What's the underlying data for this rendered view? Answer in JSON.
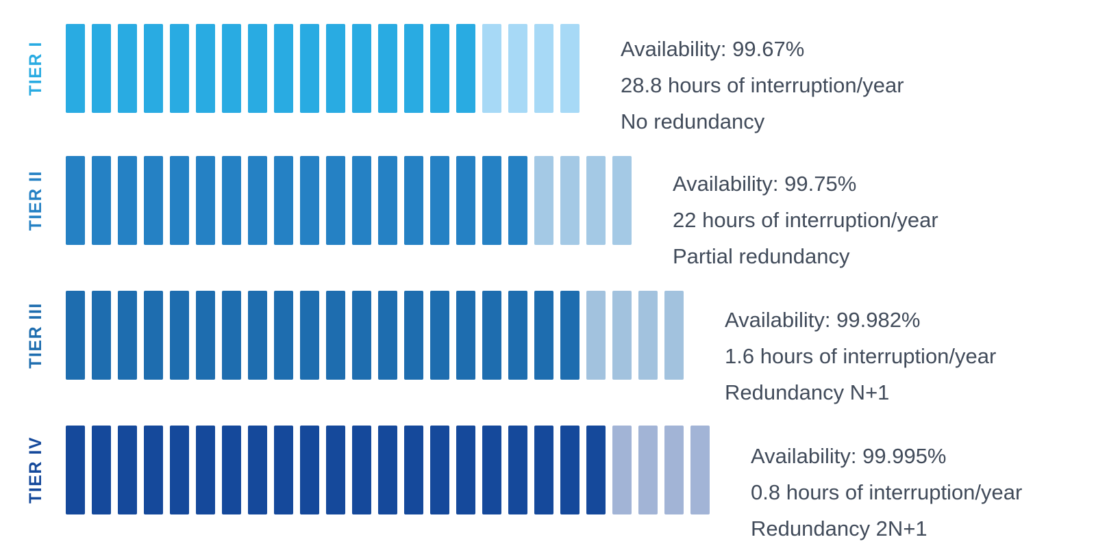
{
  "background_color": "#FFFFFF",
  "text_color": "#414B5A",
  "chart_data": {
    "type": "bar",
    "title": "",
    "description": "Data center tier classification infographic: four horizontal segmented bars (TIER I-IV) showing availability percentage, hours of interruption per year, and redundancy level. Solid segments represent availability; trailing light segments represent the remainder.",
    "legend_position": "none",
    "grid": false,
    "tiers": [
      {
        "label": "TIER I",
        "solid_color": "#29ABE2",
        "light_color": "#A7D9F6",
        "segments_total": 20,
        "segments_solid": 16,
        "segments_light": 4,
        "availability_percent": 99.67,
        "interruption_hours_per_year": 28.8,
        "redundancy": "No redundancy",
        "lines": [
          "Availability: 99.67%",
          "28.8 hours of interruption/year",
          "No redundancy"
        ]
      },
      {
        "label": "TIER II",
        "solid_color": "#2581C4",
        "light_color": "#A4C9E5",
        "segments_total": 22,
        "segments_solid": 18,
        "segments_light": 4,
        "availability_percent": 99.75,
        "interruption_hours_per_year": 22,
        "redundancy": "Partial redundancy",
        "lines": [
          "Availability: 99.75%",
          "22 hours of interruption/year",
          "Partial redundancy"
        ]
      },
      {
        "label": "TIER III",
        "solid_color": "#1E6DAF",
        "light_color": "#A2C2DE",
        "segments_total": 24,
        "segments_solid": 20,
        "segments_light": 4,
        "availability_percent": 99.982,
        "interruption_hours_per_year": 1.6,
        "redundancy": "Redundancy N+1",
        "lines": [
          "Availability: 99.982%",
          "1.6 hours of interruption/year",
          "Redundancy N+1"
        ]
      },
      {
        "label": "TIER IV",
        "solid_color": "#15499B",
        "light_color": "#A2B4D6",
        "segments_total": 25,
        "segments_solid": 21,
        "segments_light": 4,
        "availability_percent": 99.995,
        "interruption_hours_per_year": 0.8,
        "redundancy": "Redundancy 2N+1",
        "lines": [
          "Availability: 99.995%",
          "0.8 hours of interruption/year",
          "Redundancy 2N+1"
        ]
      }
    ]
  }
}
